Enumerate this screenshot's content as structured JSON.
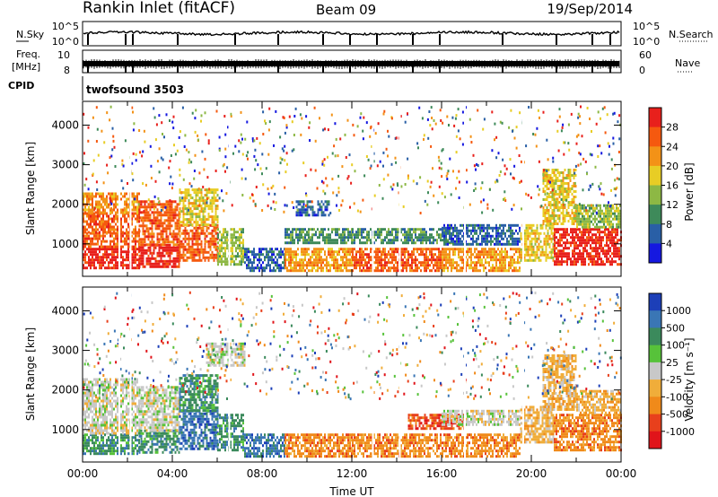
{
  "header": {
    "title": "Rankin Inlet (fitACF)",
    "beam": "Beam 09",
    "date": "19/Sep/2014"
  },
  "strips": {
    "nsky_label": "N.Sky",
    "nsearch_label": "N.Search",
    "nsky_ticks": [
      "10^5",
      "10^0"
    ],
    "freq_label_line1": "Freq.",
    "freq_label_line2": "[MHz]",
    "freq_ticks": [
      "10",
      "8"
    ],
    "nave_label": "Nave",
    "nave_ticks": [
      "60",
      "0"
    ],
    "cpid_label": "CPID",
    "cpid_value": "twofsound 3503"
  },
  "chart_data": [
    {
      "type": "heatmap",
      "name": "power",
      "ylabel": "Slant Range [km]",
      "xlabel": "",
      "yticks": [
        1000,
        2000,
        3000,
        4000
      ],
      "ylim": [
        180,
        4600
      ],
      "xlim": [
        0,
        24
      ],
      "colorbar_label": "Power [dB]",
      "colorbar_ticks": [
        "28",
        "24",
        "20",
        "16",
        "12",
        "8",
        "4"
      ],
      "colorbar_colors": [
        "#e8201c",
        "#f5590f",
        "#f39217",
        "#e8cd25",
        "#8db844",
        "#3e8a5a",
        "#295fa6",
        "#1518e0"
      ],
      "bands": [
        {
          "t0": 0.0,
          "t1": 2.5,
          "r0": 400,
          "r1": 900,
          "level": 0
        },
        {
          "t0": 0.0,
          "t1": 2.5,
          "r0": 900,
          "r1": 1300,
          "level": 1
        },
        {
          "t0": 0.0,
          "t1": 2.5,
          "r0": 1300,
          "r1": 1800,
          "level": 1
        },
        {
          "t0": 0.0,
          "t1": 2.5,
          "r0": 1800,
          "r1": 2300,
          "level": 2
        },
        {
          "t0": 2.5,
          "t1": 4.3,
          "r0": 400,
          "r1": 1000,
          "level": 0
        },
        {
          "t0": 2.5,
          "t1": 4.3,
          "r0": 1000,
          "r1": 2100,
          "level": 1
        },
        {
          "t0": 4.3,
          "t1": 6.0,
          "r0": 600,
          "r1": 1500,
          "level": 1
        },
        {
          "t0": 4.3,
          "t1": 6.0,
          "r0": 1500,
          "r1": 2400,
          "level": 3
        },
        {
          "t0": 6.0,
          "t1": 7.2,
          "r0": 500,
          "r1": 1400,
          "level": 4
        },
        {
          "t0": 7.2,
          "t1": 9.0,
          "r0": 300,
          "r1": 900,
          "level": 6
        },
        {
          "t0": 9.0,
          "t1": 12.0,
          "r0": 350,
          "r1": 900,
          "level": 2
        },
        {
          "t0": 9.0,
          "t1": 12.0,
          "r0": 1000,
          "r1": 1400,
          "level": 5
        },
        {
          "t0": 9.5,
          "t1": 11.0,
          "r0": 1700,
          "r1": 2100,
          "level": 6
        },
        {
          "t0": 12.0,
          "t1": 16.0,
          "r0": 350,
          "r1": 900,
          "level": 1
        },
        {
          "t0": 12.0,
          "t1": 16.5,
          "r0": 1000,
          "r1": 1400,
          "level": 5
        },
        {
          "t0": 16.0,
          "t1": 19.5,
          "r0": 350,
          "r1": 900,
          "level": 2
        },
        {
          "t0": 16.0,
          "t1": 19.5,
          "r0": 1000,
          "r1": 1500,
          "level": 6
        },
        {
          "t0": 19.5,
          "t1": 21.0,
          "r0": 600,
          "r1": 1500,
          "level": 3
        },
        {
          "t0": 20.5,
          "t1": 22.0,
          "r0": 1500,
          "r1": 2900,
          "level": 3
        },
        {
          "t0": 21.0,
          "t1": 24.0,
          "r0": 500,
          "r1": 1400,
          "level": 0
        },
        {
          "t0": 22.0,
          "t1": 24.0,
          "r0": 1400,
          "r1": 2000,
          "level": 4
        }
      ]
    },
    {
      "type": "heatmap",
      "name": "velocity",
      "ylabel": "Slant Range [km]",
      "xlabel": "Time UT",
      "xticks": [
        "00:00",
        "04:00",
        "08:00",
        "12:00",
        "16:00",
        "20:00",
        "00:00"
      ],
      "yticks": [
        1000,
        2000,
        3000,
        4000
      ],
      "ylim": [
        180,
        4600
      ],
      "xlim": [
        0,
        24
      ],
      "colorbar_label": "Velocity [m s⁻¹]",
      "colorbar_ticks": [
        "1000",
        "500",
        "100",
        "25",
        "-25",
        "-100",
        "-500",
        "-1000"
      ],
      "colorbar_colors": [
        "#1c3fb8",
        "#3a76b5",
        "#3b8a5c",
        "#57c23a",
        "#c8c8c8",
        "#f0ad3a",
        "#f08a1a",
        "#e8401c",
        "#e0141a"
      ],
      "bands": [
        {
          "t0": 0.0,
          "t1": 2.5,
          "r0": 400,
          "r1": 900,
          "level": 2
        },
        {
          "t0": 0.0,
          "t1": 2.5,
          "r0": 900,
          "r1": 2300,
          "level": 4
        },
        {
          "t0": 2.5,
          "t1": 4.3,
          "r0": 400,
          "r1": 1000,
          "level": 2
        },
        {
          "t0": 2.5,
          "t1": 4.3,
          "r0": 1000,
          "r1": 2100,
          "level": 4
        },
        {
          "t0": 4.3,
          "t1": 6.0,
          "r0": 500,
          "r1": 1500,
          "level": 1
        },
        {
          "t0": 4.3,
          "t1": 6.0,
          "r0": 1500,
          "r1": 2400,
          "level": 2
        },
        {
          "t0": 5.5,
          "t1": 7.2,
          "r0": 2600,
          "r1": 3200,
          "level": 4
        },
        {
          "t0": 6.0,
          "t1": 7.2,
          "r0": 500,
          "r1": 1400,
          "level": 2
        },
        {
          "t0": 7.2,
          "t1": 9.0,
          "r0": 300,
          "r1": 900,
          "level": 1
        },
        {
          "t0": 9.0,
          "t1": 12.0,
          "r0": 350,
          "r1": 900,
          "level": 6
        },
        {
          "t0": 12.0,
          "t1": 16.0,
          "r0": 350,
          "r1": 900,
          "level": 6
        },
        {
          "t0": 14.5,
          "t1": 17.0,
          "r0": 1000,
          "r1": 1400,
          "level": 7
        },
        {
          "t0": 16.0,
          "t1": 19.5,
          "r0": 350,
          "r1": 900,
          "level": 6
        },
        {
          "t0": 16.0,
          "t1": 19.5,
          "r0": 1100,
          "r1": 1500,
          "level": 4
        },
        {
          "t0": 19.5,
          "t1": 21.0,
          "r0": 700,
          "r1": 1600,
          "level": 5
        },
        {
          "t0": 20.5,
          "t1": 22.0,
          "r0": 1500,
          "r1": 2900,
          "level": 5
        },
        {
          "t0": 21.0,
          "t1": 24.0,
          "r0": 500,
          "r1": 1400,
          "level": 6
        },
        {
          "t0": 22.0,
          "t1": 24.0,
          "r0": 1400,
          "r1": 2000,
          "level": 5
        }
      ]
    }
  ]
}
